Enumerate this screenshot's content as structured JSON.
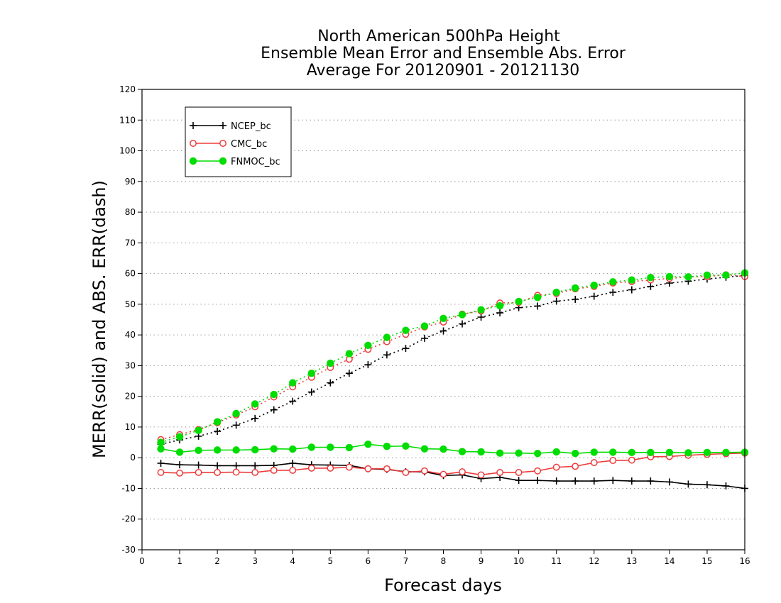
{
  "chart_data": {
    "type": "line",
    "title": [
      "North American 500hPa Height",
      "Ensemble Mean Error and Ensemble Abs. Error",
      "Average For 20120901 - 20121130"
    ],
    "xlabel": "Forecast days",
    "ylabel": "MERR(solid) and ABS. ERR(dash)",
    "xlim": [
      0,
      16
    ],
    "ylim": [
      -30,
      120
    ],
    "xticks": [
      0,
      1,
      2,
      3,
      4,
      5,
      6,
      7,
      8,
      9,
      10,
      11,
      12,
      13,
      14,
      15,
      16
    ],
    "yticks": [
      -30,
      -20,
      -10,
      0,
      10,
      20,
      30,
      40,
      50,
      60,
      70,
      80,
      90,
      100,
      110,
      120
    ],
    "grid": "horizontal dotted",
    "legend_position": "top-left",
    "x": [
      0.5,
      1,
      1.5,
      2,
      2.5,
      3,
      3.5,
      4,
      4.5,
      5,
      5.5,
      6,
      6.5,
      7,
      7.5,
      8,
      8.5,
      9,
      9.5,
      10,
      10.5,
      11,
      11.5,
      12,
      12.5,
      13,
      13.5,
      14,
      14.5,
      15,
      15.5,
      16
    ],
    "series": [
      {
        "name": "NCEP_bc",
        "color": "#000000",
        "marker": "plus",
        "merr": [
          -1.8,
          -2.3,
          -2.4,
          -2.6,
          -2.6,
          -2.6,
          -2.5,
          -1.8,
          -2.3,
          -2.4,
          -2.5,
          -3.6,
          -3.8,
          -4.6,
          -4.6,
          -5.8,
          -5.6,
          -6.8,
          -6.4,
          -7.4,
          -7.4,
          -7.6,
          -7.6,
          -7.6,
          -7.4,
          -7.6,
          -7.6,
          -7.9,
          -8.6,
          -8.8,
          -9.2,
          -10.0
        ],
        "abs_err": [
          4.4,
          5.8,
          7.0,
          8.6,
          10.6,
          12.8,
          15.6,
          18.4,
          21.4,
          24.4,
          27.5,
          30.3,
          33.5,
          35.6,
          38.9,
          41.3,
          43.6,
          45.8,
          47.2,
          48.9,
          49.4,
          51.0,
          51.6,
          52.6,
          53.9,
          54.7,
          55.8,
          56.9,
          57.5,
          58.2,
          58.8,
          59.4
        ]
      },
      {
        "name": "CMC_bc",
        "color": "#ee3b3b",
        "marker": "open-circle",
        "merr": [
          -4.8,
          -5.0,
          -4.8,
          -4.8,
          -4.7,
          -4.8,
          -4.1,
          -4.1,
          -3.4,
          -3.4,
          -3.1,
          -3.6,
          -3.6,
          -4.8,
          -4.3,
          -5.4,
          -4.6,
          -5.6,
          -4.8,
          -4.8,
          -4.3,
          -3.1,
          -2.8,
          -1.6,
          -0.9,
          -0.8,
          0.3,
          0.4,
          0.8,
          1.1,
          1.3,
          1.5
        ],
        "abs_err": [
          5.9,
          7.5,
          9.2,
          11.4,
          13.9,
          16.6,
          19.8,
          23.1,
          26.2,
          29.4,
          32.1,
          35.3,
          37.8,
          40.2,
          42.6,
          44.2,
          46.8,
          47.8,
          50.4,
          50.6,
          52.9,
          53.5,
          55.0,
          55.8,
          56.9,
          57.4,
          57.9,
          58.4,
          58.9,
          59.0,
          59.6,
          59.0
        ]
      },
      {
        "name": "FNMOC_bc",
        "color": "#00dd00",
        "marker": "filled-circle",
        "merr": [
          2.9,
          1.8,
          2.4,
          2.5,
          2.5,
          2.6,
          2.9,
          2.8,
          3.4,
          3.4,
          3.3,
          4.4,
          3.7,
          3.8,
          2.9,
          2.8,
          2.0,
          1.9,
          1.5,
          1.5,
          1.4,
          1.9,
          1.4,
          1.8,
          1.8,
          1.7,
          1.7,
          1.7,
          1.6,
          1.7,
          1.7,
          1.8
        ],
        "abs_err": [
          5.0,
          6.8,
          8.9,
          11.7,
          14.4,
          17.5,
          20.6,
          24.4,
          27.5,
          30.8,
          33.9,
          36.6,
          39.2,
          41.5,
          42.9,
          45.4,
          46.6,
          48.2,
          49.5,
          50.9,
          52.2,
          53.9,
          55.3,
          56.2,
          57.3,
          57.9,
          58.7,
          59.0,
          58.9,
          59.5,
          59.5,
          60.2
        ]
      }
    ]
  }
}
